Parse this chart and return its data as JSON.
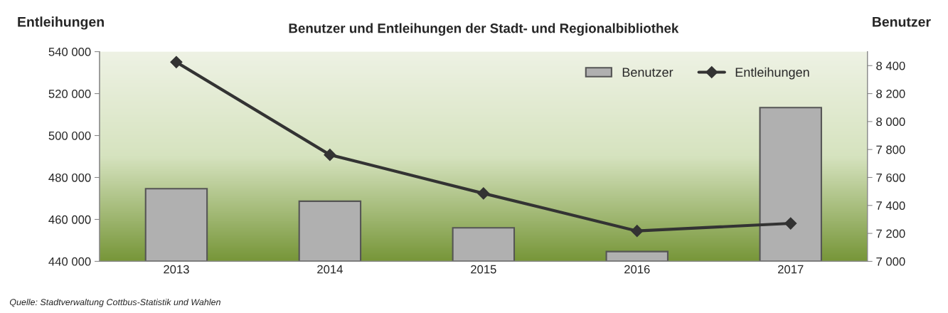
{
  "chart_data": {
    "type": "bar",
    "title": "Benutzer und Entleihungen der Stadt- und Regionalbibliothek",
    "ylabel": "Entleihungen",
    "y2label": "Benutzer",
    "categories": [
      "2013",
      "2014",
      "2015",
      "2016",
      "2017"
    ],
    "series": [
      {
        "name": "Benutzer",
        "axis": "y2",
        "color": "#b0b0b0",
        "values": [
          7520,
          7430,
          7240,
          7070,
          8100
        ]
      },
      {
        "name": "Entleihungen",
        "type": "line",
        "axis": "y",
        "color": "#333333",
        "marker": "diamond",
        "values": [
          535000,
          490800,
          472400,
          454500,
          458100
        ]
      }
    ],
    "ylim": [
      440000,
      540000
    ],
    "yticks": [
      {
        "value": 440000,
        "label": "440 000"
      },
      {
        "value": 460000,
        "label": "460 000"
      },
      {
        "value": 480000,
        "label": "480 000"
      },
      {
        "value": 500000,
        "label": "500 000"
      },
      {
        "value": 520000,
        "label": "520 000"
      },
      {
        "value": 540000,
        "label": "540 000"
      }
    ],
    "y2lim": [
      7000,
      8500
    ],
    "y2ticks": [
      {
        "value": 7000,
        "label": "7 000"
      },
      {
        "value": 7200,
        "label": "7 200"
      },
      {
        "value": 7400,
        "label": "7 400"
      },
      {
        "value": 7600,
        "label": "7 600"
      },
      {
        "value": 7800,
        "label": "7 800"
      },
      {
        "value": 8000,
        "label": "8 000"
      },
      {
        "value": 8200,
        "label": "8 200"
      },
      {
        "value": 8400,
        "label": "8 400"
      }
    ],
    "legend": "top right",
    "grid": false,
    "annotations": [
      "Quelle: Stadtverwaltung Cottbus-Statistik und Wahlen"
    ]
  }
}
